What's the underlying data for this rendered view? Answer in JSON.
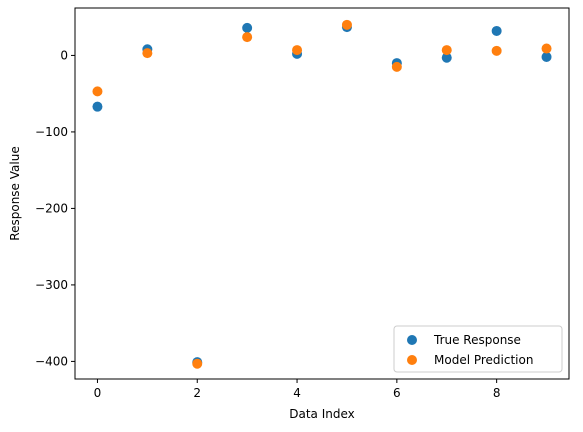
{
  "chart_data": {
    "type": "scatter",
    "xlabel": "Data Index",
    "ylabel": "Response Value",
    "xlim": [
      -0.45,
      9.45
    ],
    "ylim": [
      -423,
      62
    ],
    "xticks": [
      0,
      2,
      4,
      6,
      8
    ],
    "yticks": [
      -400,
      -300,
      -200,
      -100,
      0
    ],
    "grid": false,
    "legend_position": "lower-right",
    "x": [
      0,
      1,
      2,
      3,
      4,
      5,
      6,
      7,
      8,
      9
    ],
    "series": [
      {
        "name": "True Response",
        "color": "#1f77b4",
        "values": [
          -67,
          8,
          -401,
          36,
          2,
          37,
          -10,
          -3,
          32,
          -2
        ]
      },
      {
        "name": "Model Prediction",
        "color": "#ff7f0e",
        "values": [
          -47,
          3,
          -403,
          24,
          7,
          40,
          -15,
          7,
          6,
          9
        ]
      }
    ]
  }
}
